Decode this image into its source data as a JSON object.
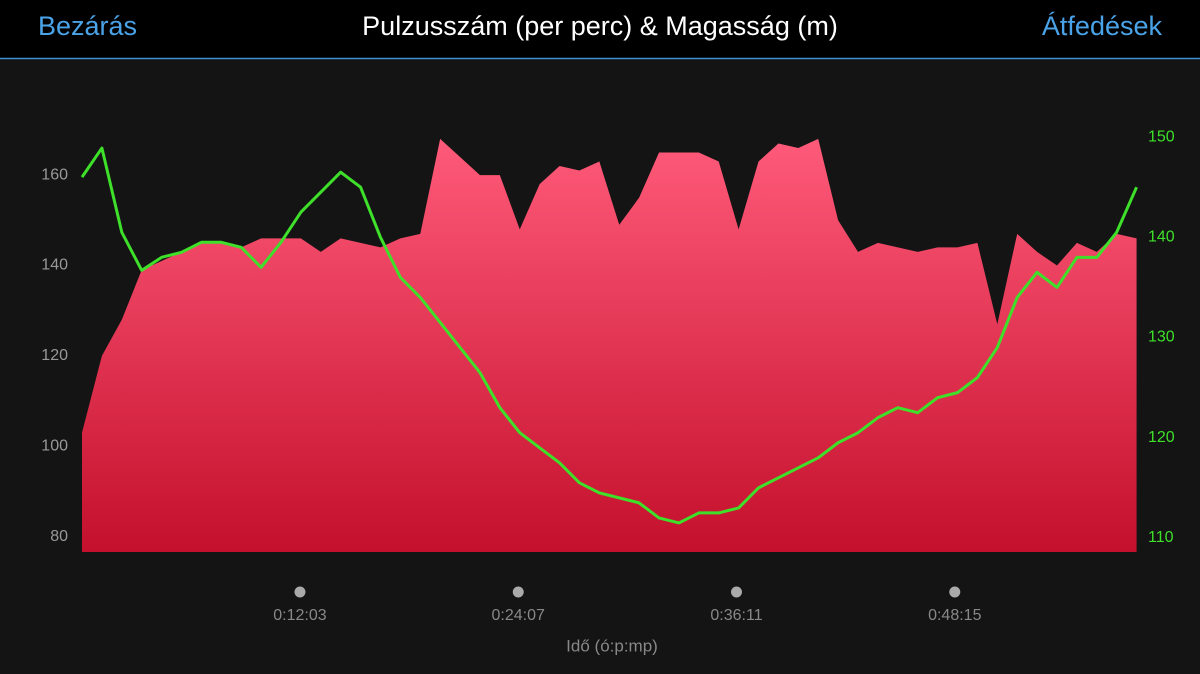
{
  "header": {
    "close": "Bezárás",
    "overlays": "Átfedések"
  },
  "chart_data": {
    "type": "area",
    "title": "Pulzusszám (per perc) & Magasság (m)",
    "xlabel": "Idő (ó:p:mp)",
    "x": [
      0,
      66,
      132,
      198,
      264,
      330,
      396,
      462,
      528,
      594,
      660,
      726,
      792,
      858,
      924,
      990,
      1056,
      1122,
      1188,
      1254,
      1320,
      1386,
      1452,
      1518,
      1584,
      1650,
      1716,
      1782,
      1848,
      1914,
      1980,
      2046,
      2112,
      2178,
      2244,
      2310,
      2376,
      2442,
      2508,
      2574,
      2640,
      2706,
      2772,
      2838,
      2904,
      2970,
      3036,
      3102,
      3168,
      3234,
      3300,
      3366,
      3432,
      3498
    ],
    "xlim": [
      0,
      3516
    ],
    "xticks": [
      {
        "value": 723,
        "label": "0:12:03"
      },
      {
        "value": 1447,
        "label": "0:24:07"
      },
      {
        "value": 2171,
        "label": "0:36:11"
      },
      {
        "value": 2895,
        "label": "0:48:15"
      }
    ],
    "ylim": [
      76.6,
      174.4
    ],
    "yticks": [
      80,
      100,
      120,
      140,
      160
    ],
    "y2lim": [
      108.6,
      152.7
    ],
    "y2ticks": [
      110,
      120,
      130,
      140,
      150
    ],
    "series": [
      {
        "type": "area",
        "color": "#ff5a7a",
        "color2": "#c4102c",
        "values": [
          103,
          120,
          128,
          139,
          141,
          143,
          145,
          145,
          144,
          146,
          146,
          146,
          143,
          146,
          145,
          144,
          146,
          147,
          168,
          164,
          160,
          160,
          148,
          158,
          162,
          161,
          163,
          149,
          155,
          165,
          165,
          165,
          163,
          148,
          163,
          167,
          166,
          168,
          150,
          143,
          145,
          144,
          143,
          144,
          144,
          145,
          127,
          147,
          143,
          140,
          145,
          143,
          147,
          146
        ]
      },
      {
        "type": "line",
        "axis": "y2",
        "color": "#3ee02a",
        "values": [
          146,
          148.9,
          140.5,
          136.7,
          138,
          138.5,
          139.5,
          139.5,
          139,
          137,
          139.5,
          142.5,
          144.5,
          146.5,
          145,
          140,
          136,
          134,
          131.5,
          129,
          126.5,
          123,
          120.5,
          119,
          117.5,
          115.5,
          114.5,
          114,
          113.5,
          112,
          111.5,
          112.5,
          112.5,
          113,
          115,
          116,
          117,
          118,
          119.5,
          120.5,
          122,
          123,
          122.5,
          124,
          124.5,
          126,
          129,
          134,
          136.5,
          135,
          138,
          138,
          140.5,
          145
        ]
      }
    ]
  }
}
